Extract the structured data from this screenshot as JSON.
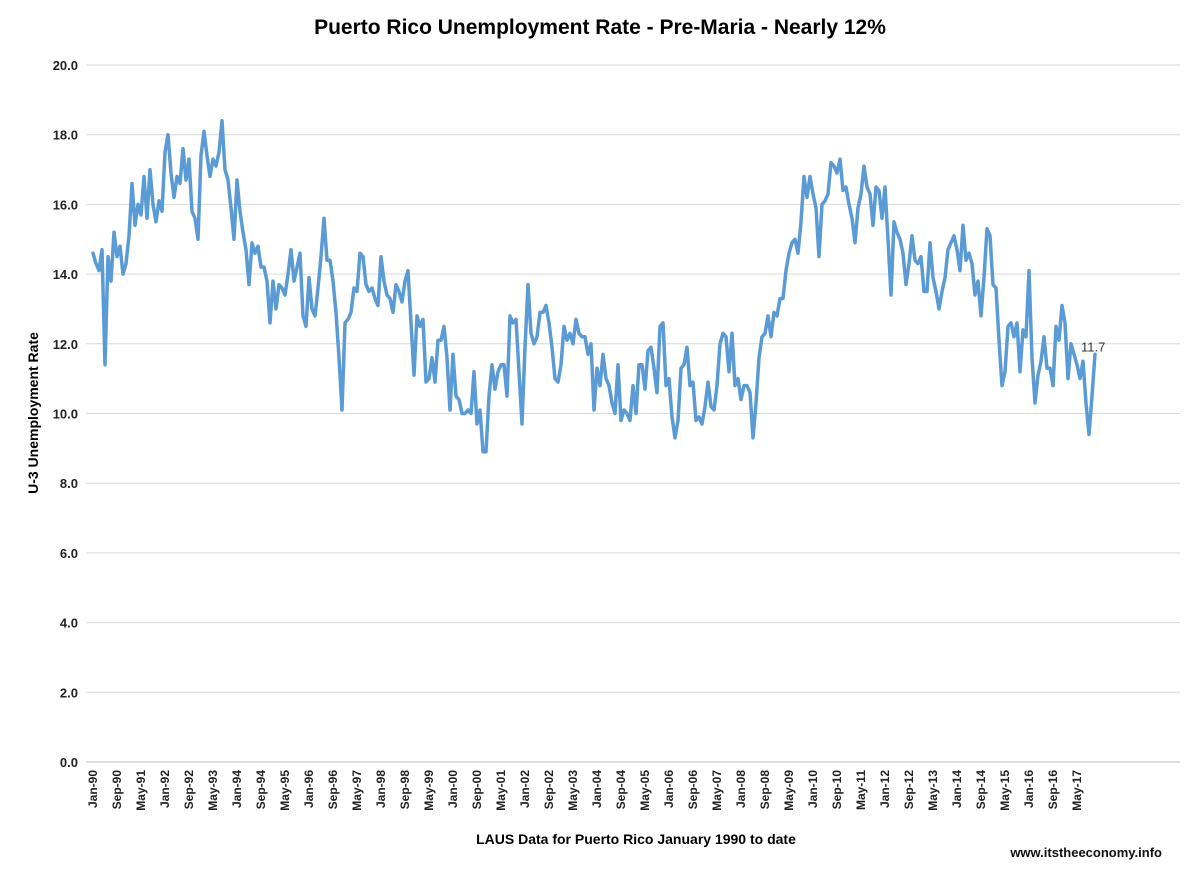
{
  "chart_data": {
    "type": "line",
    "title": "Puerto Rico Unemployment Rate - Pre-Maria - Nearly 12%",
    "xlabel": "LAUS Data for Puerto Rico January 1990 to date",
    "ylabel": "U-3 Unemployment Rate",
    "ylim": [
      0,
      20
    ],
    "yticks": [
      "0.0",
      "2.0",
      "4.0",
      "6.0",
      "8.0",
      "10.0",
      "12.0",
      "14.0",
      "16.0",
      "18.0",
      "20.0"
    ],
    "grid": "horizontal",
    "line_color": "#5B9BD5",
    "start_month": "Jan-90",
    "x_tick_labels": [
      "Jan-90",
      "Sep-90",
      "May-91",
      "Jan-92",
      "Sep-92",
      "May-93",
      "Jan-94",
      "Sep-94",
      "May-95",
      "Jan-96",
      "Sep-96",
      "May-97",
      "Jan-98",
      "Sep-98",
      "May-99",
      "Jan-00",
      "Sep-00",
      "May-01",
      "Jan-02",
      "Sep-02",
      "May-03",
      "Jan-04",
      "Sep-04",
      "May-05",
      "Jan-06",
      "Sep-06",
      "May-07",
      "Jan-08",
      "Sep-08",
      "May-09",
      "Jan-10",
      "Sep-10",
      "May-11",
      "Jan-12",
      "Sep-12",
      "May-13",
      "Jan-14",
      "Sep-14",
      "May-15",
      "Jan-16",
      "Sep-16",
      "May-17"
    ],
    "last_value_label": "11.7",
    "series": [
      {
        "values": [
          14.6,
          14.3,
          14.1,
          14.7,
          11.4,
          14.5,
          13.8,
          15.2,
          14.5,
          14.8,
          14.0,
          14.3,
          15.1,
          16.6,
          15.4,
          16.0,
          15.7,
          16.8,
          15.6,
          17.0,
          16.0,
          15.5,
          16.1,
          15.8,
          17.5,
          18.0,
          16.9,
          16.2,
          16.8,
          16.6,
          17.6,
          16.7,
          17.3,
          15.8,
          15.6,
          15.0,
          17.4,
          18.1,
          17.4,
          16.8,
          17.3,
          17.1,
          17.5,
          18.4,
          17.0,
          16.7,
          15.9,
          15.0,
          16.7,
          15.8,
          15.2,
          14.7,
          13.7,
          14.9,
          14.6,
          14.8,
          14.2,
          14.2,
          13.8,
          12.6,
          13.8,
          13.0,
          13.7,
          13.6,
          13.4,
          14.0,
          14.7,
          13.8,
          14.2,
          14.6,
          12.8,
          12.5,
          13.9,
          13.0,
          12.8,
          13.6,
          14.5,
          15.6,
          14.4,
          14.4,
          13.8,
          12.9,
          11.6,
          10.1,
          12.6,
          12.7,
          12.9,
          13.6,
          13.5,
          14.6,
          14.5,
          13.7,
          13.5,
          13.6,
          13.3,
          13.1,
          14.5,
          13.8,
          13.4,
          13.3,
          12.9,
          13.7,
          13.5,
          13.2,
          13.8,
          14.1,
          12.6,
          11.1,
          12.8,
          12.5,
          12.7,
          10.9,
          11.0,
          11.6,
          10.9,
          12.1,
          12.1,
          12.5,
          11.6,
          10.1,
          11.7,
          10.5,
          10.4,
          10.0,
          10.0,
          10.1,
          10.0,
          11.2,
          9.7,
          10.1,
          8.9,
          8.9,
          10.5,
          11.4,
          10.7,
          11.2,
          11.4,
          11.4,
          10.5,
          12.8,
          12.6,
          12.7,
          11.2,
          9.7,
          11.9,
          13.7,
          12.3,
          12.0,
          12.2,
          12.9,
          12.9,
          13.1,
          12.6,
          11.9,
          11.0,
          10.9,
          11.4,
          12.5,
          12.1,
          12.3,
          12.0,
          12.7,
          12.3,
          12.2,
          12.2,
          11.7,
          12.0,
          10.1,
          11.3,
          10.8,
          11.7,
          11.0,
          10.8,
          10.3,
          10.0,
          11.4,
          9.8,
          10.1,
          10.0,
          9.8,
          10.8,
          10.0,
          11.4,
          11.4,
          10.7,
          11.8,
          11.9,
          11.3,
          10.6,
          12.5,
          12.6,
          10.8,
          11.0,
          9.9,
          9.3,
          9.8,
          11.3,
          11.4,
          11.9,
          10.8,
          10.9,
          9.8,
          9.9,
          9.7,
          10.2,
          10.9,
          10.2,
          10.1,
          10.8,
          12.0,
          12.3,
          12.2,
          11.2,
          12.3,
          10.8,
          11.0,
          10.4,
          10.8,
          10.8,
          10.6,
          9.3,
          10.3,
          11.6,
          12.2,
          12.3,
          12.8,
          12.2,
          12.9,
          12.8,
          13.3,
          13.3,
          14.1,
          14.6,
          14.9,
          15.0,
          14.6,
          15.5,
          16.8,
          16.2,
          16.8,
          16.3,
          15.9,
          14.5,
          16.0,
          16.1,
          16.3,
          17.2,
          17.1,
          16.9,
          17.3,
          16.4,
          16.5,
          16.0,
          15.6,
          14.9,
          15.9,
          16.3,
          17.1,
          16.5,
          16.3,
          15.4,
          16.5,
          16.4,
          15.6,
          16.5,
          15.0,
          13.4,
          15.5,
          15.2,
          15.0,
          14.6,
          13.7,
          14.3,
          15.1,
          14.4,
          14.3,
          14.5,
          13.5,
          13.5,
          14.9,
          13.9,
          13.5,
          13.0,
          13.5,
          13.9,
          14.7,
          14.9,
          15.1,
          14.7,
          14.1,
          15.4,
          14.4,
          14.6,
          14.3,
          13.4,
          13.8,
          12.8,
          13.9,
          15.3,
          15.1,
          13.7,
          13.6,
          12.1,
          10.8,
          11.2,
          12.5,
          12.6,
          12.2,
          12.6,
          11.2,
          12.4,
          12.2,
          14.1,
          11.6,
          10.3,
          11.1,
          11.5,
          12.2,
          11.3,
          11.3,
          10.8,
          12.5,
          12.1,
          13.1,
          12.6,
          11.0,
          12.0,
          11.7,
          11.4,
          11.0,
          11.5,
          10.3,
          9.4,
          10.5,
          11.7
        ]
      }
    ]
  },
  "footer": {
    "source": "www.itstheeconomy.info"
  }
}
